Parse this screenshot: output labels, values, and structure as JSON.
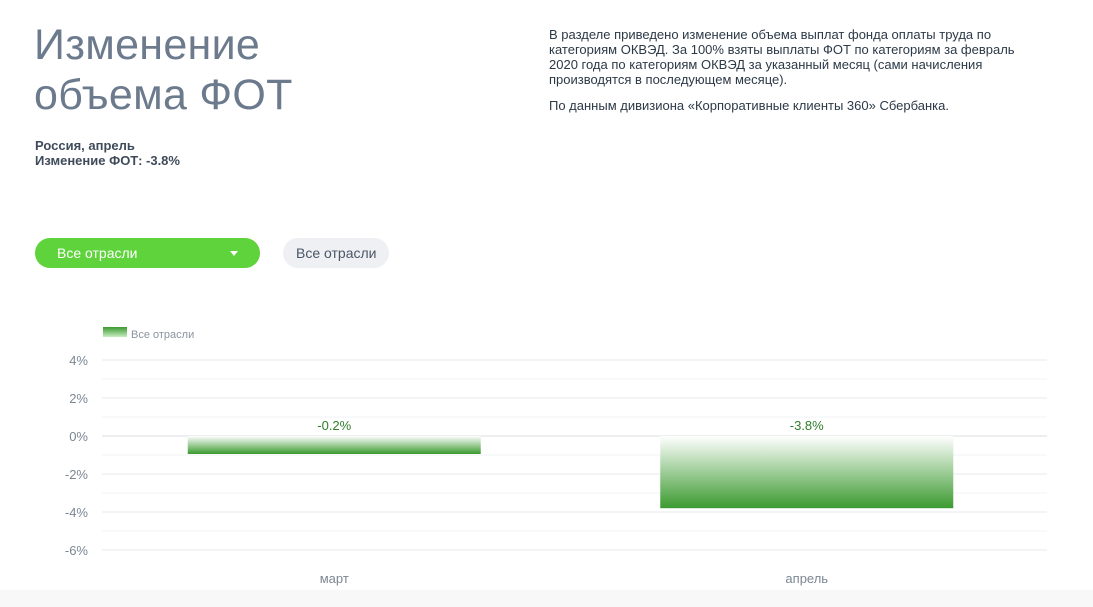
{
  "header": {
    "title_line1": "Изменение",
    "title_line2": "объема ФОТ",
    "region": "Россия, апрель",
    "change_label": "Изменение ФОТ: -3.8%"
  },
  "description": {
    "paragraph1": "В разделе приведено изменение объема выплат фонда оплаты труда по категориям ОКВЭД. За 100% взяты выплаты ФОТ по категориям за февраль 2020 года по категориям ОКВЭД за указанный месяц (сами начисления производятся в последующем месяце).",
    "paragraph2": "По данным дивизиона «Корпоративные клиенты 360» Сбербанка."
  },
  "filters": {
    "dropdown_value": "Все отрасли",
    "chip_label": "Все отрасли"
  },
  "colors": {
    "accent": "#5fd33b",
    "bar_dark": "#3b9a2f",
    "bar_light": "#ffffff",
    "value_label": "#2f7d2b"
  },
  "chart_data": {
    "type": "bar",
    "categories": [
      "март",
      "апрель"
    ],
    "series": [
      {
        "name": "Все отрасли",
        "values": [
          -0.2,
          -3.8
        ]
      }
    ],
    "value_labels": [
      "-0.2%",
      "-3.8%"
    ],
    "ylim": [
      -6,
      4
    ],
    "yticks": [
      4,
      2,
      0,
      -2,
      -4,
      -6
    ],
    "ytick_labels": [
      "4%",
      "2%",
      "0%",
      "-2%",
      "-4%",
      "-6%"
    ],
    "grid": true,
    "legend": "top-left"
  }
}
